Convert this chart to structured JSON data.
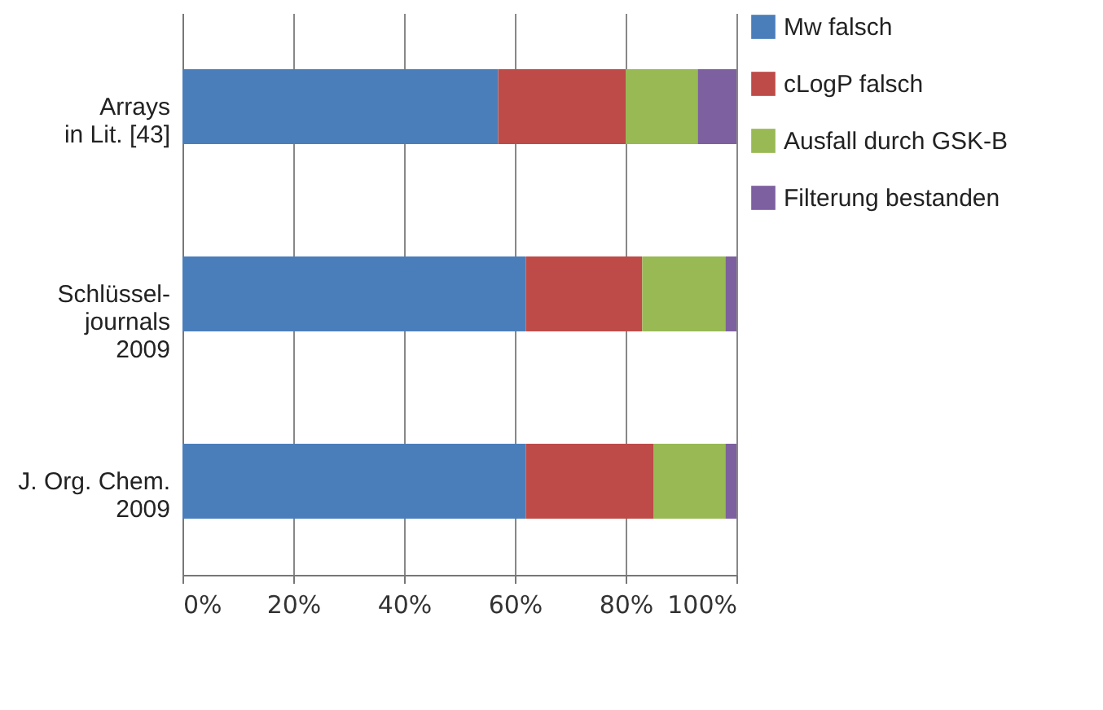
{
  "chart_data": {
    "type": "bar",
    "orientation": "horizontal",
    "stacked": true,
    "categories": [
      "Arrays\nin Lit. [43]",
      "Schlüssel-\njournals\n2009",
      "J. Org. Chem.\n2009"
    ],
    "series": [
      {
        "name": "Mw falsch",
        "color": "#4a7ebb",
        "values": [
          57,
          62,
          62
        ]
      },
      {
        "name": "cLogP falsch",
        "color": "#be4b48",
        "values": [
          23,
          21,
          23
        ]
      },
      {
        "name": "Ausfall durch GSK-B",
        "color": "#98b954",
        "values": [
          13,
          15,
          13
        ]
      },
      {
        "name": "Filterung bestanden",
        "color": "#7d60a0",
        "values": [
          7,
          2,
          2
        ]
      }
    ],
    "xlim": [
      0,
      100
    ],
    "xticks": [
      {
        "value": 0,
        "label": "0%"
      },
      {
        "value": 20,
        "label": "20%"
      },
      {
        "value": 40,
        "label": "40%"
      },
      {
        "value": 60,
        "label": "60%"
      },
      {
        "value": 80,
        "label": "80%"
      },
      {
        "value": 100,
        "label": "100%"
      }
    ],
    "grid": "x",
    "legend": "right"
  }
}
